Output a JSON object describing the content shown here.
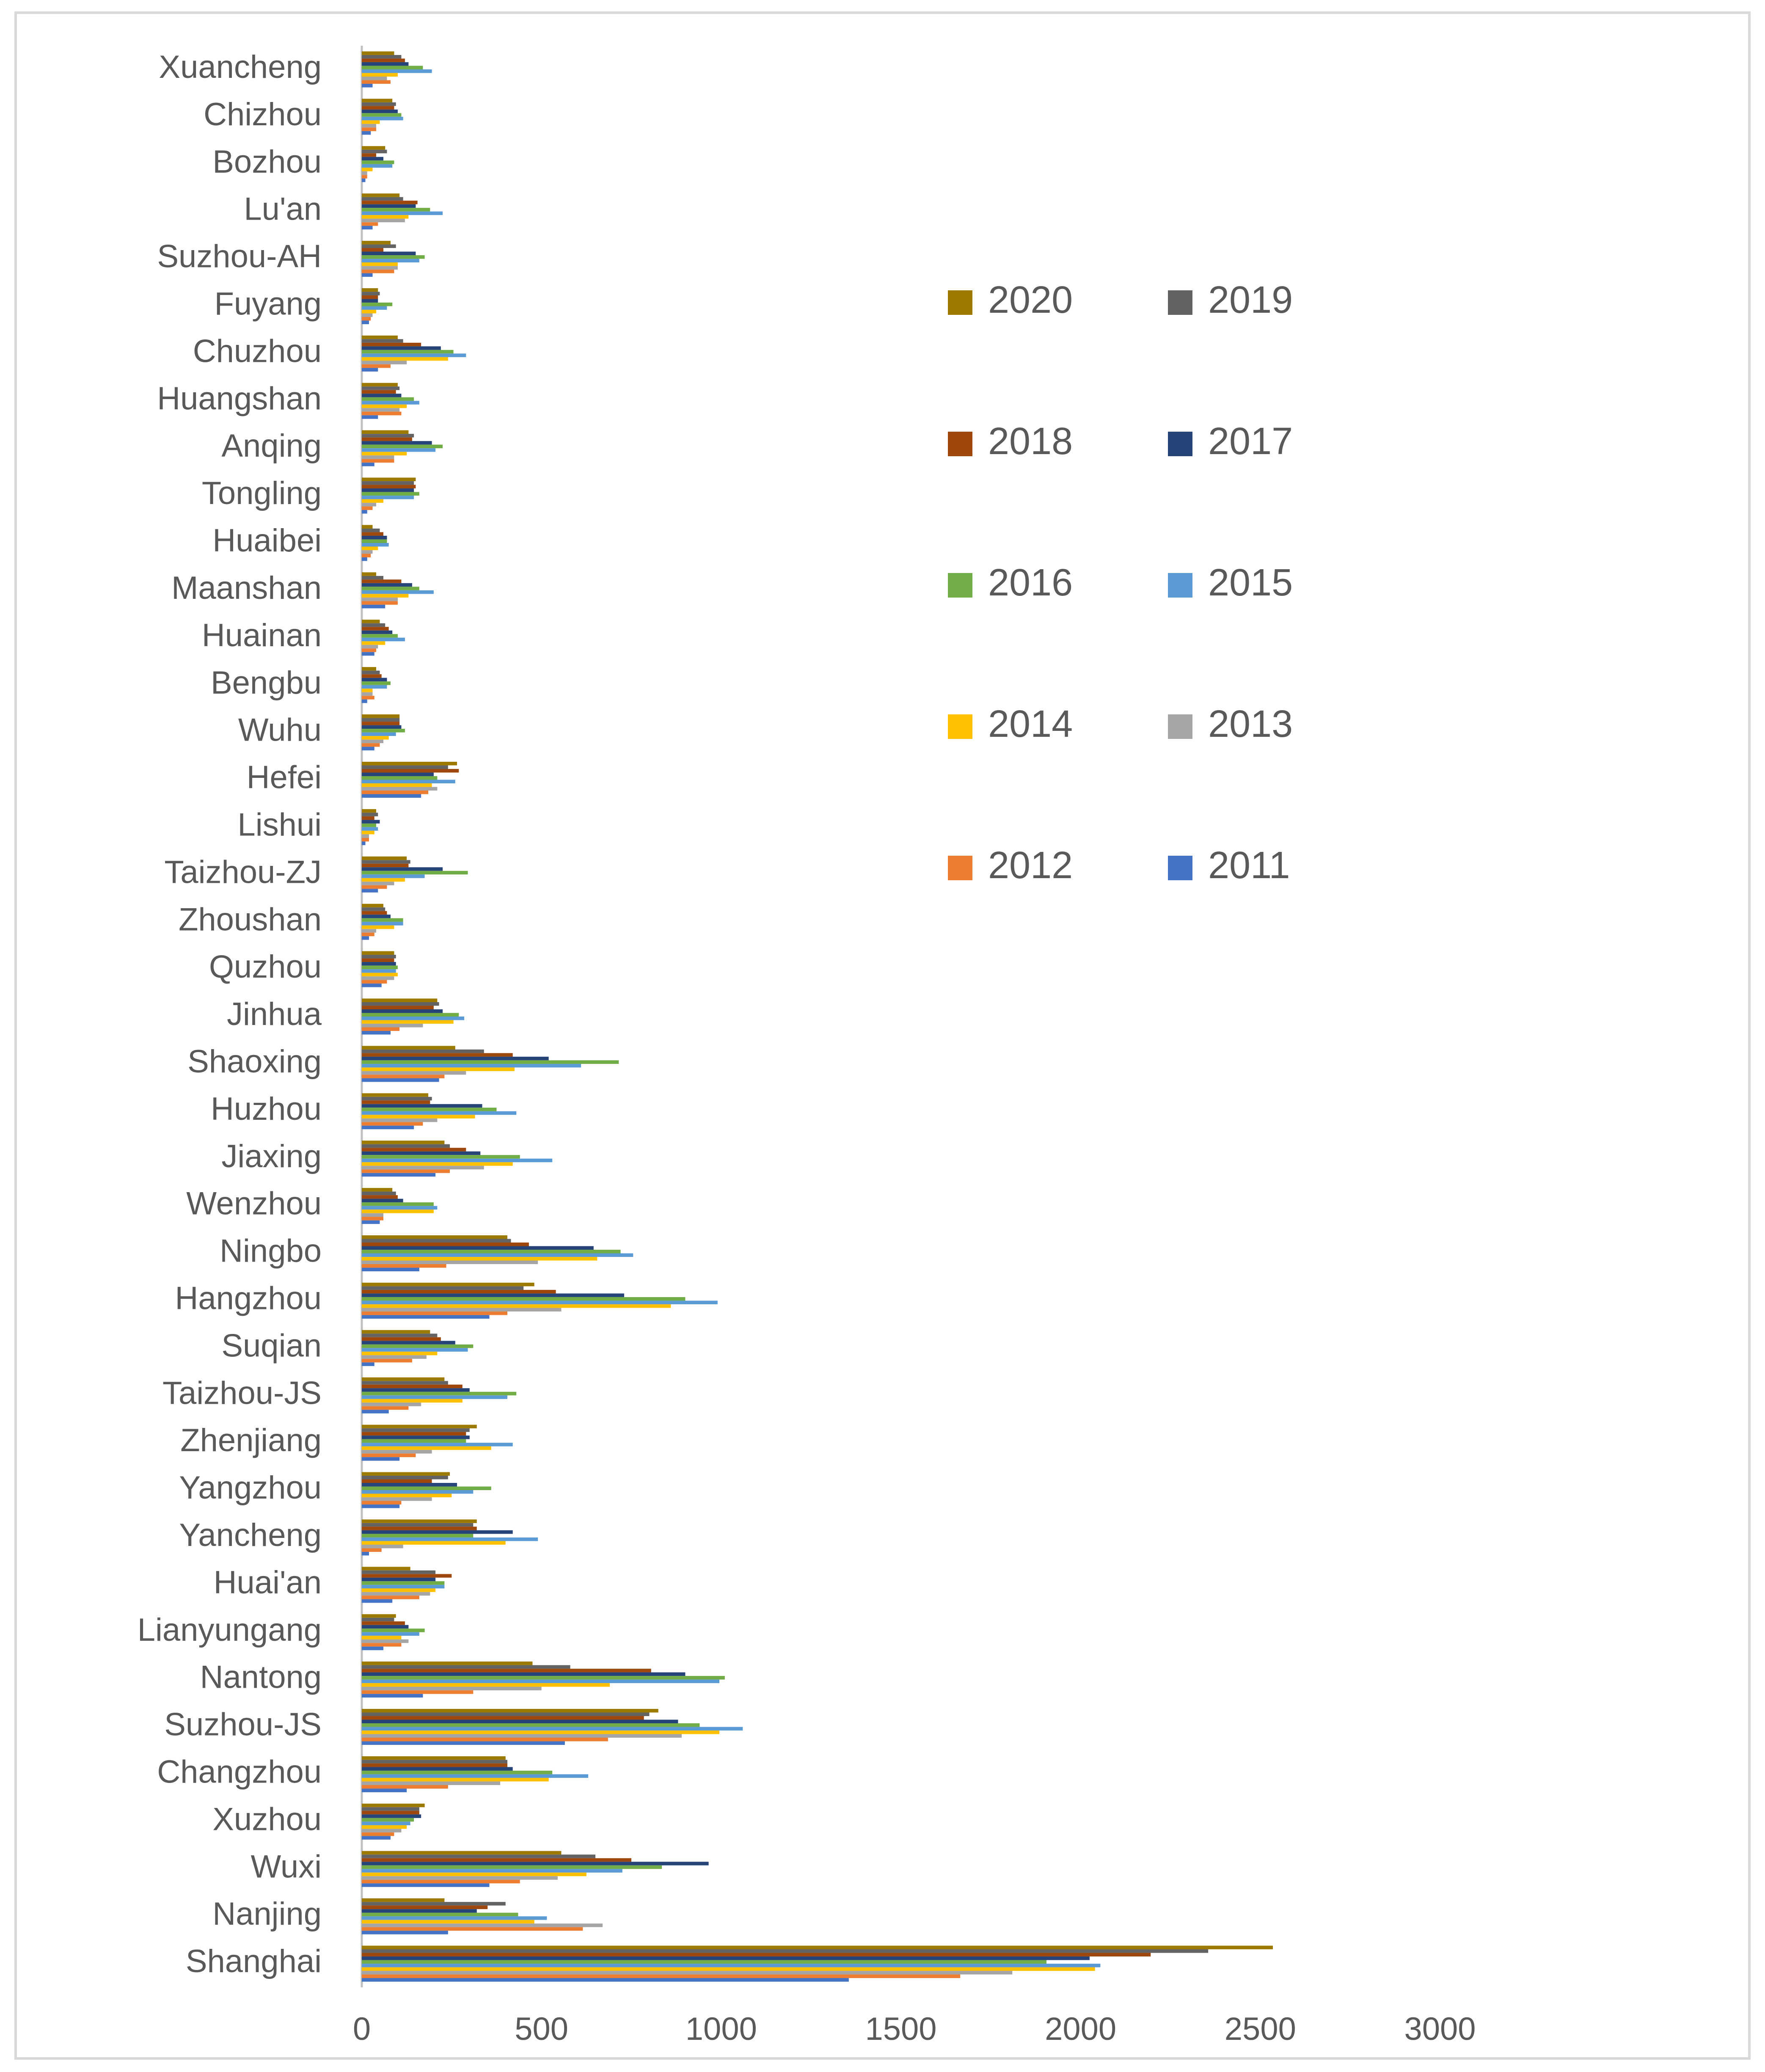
{
  "chart_data": {
    "type": "bar",
    "orientation": "horizontal",
    "title": "",
    "xlabel": "",
    "ylabel": "",
    "xlim": [
      0,
      3000
    ],
    "xticks": [
      0,
      500,
      1000,
      1500,
      2000,
      2500,
      3000
    ],
    "grid": false,
    "legend_position": "right",
    "categories": [
      "Xuancheng",
      "Chizhou",
      "Bozhou",
      "Lu'an",
      "Suzhou-AH",
      "Fuyang",
      "Chuzhou",
      "Huangshan",
      "Anqing",
      "Tongling",
      "Huaibei",
      "Maanshan",
      "Huainan",
      "Bengbu",
      "Wuhu",
      "Hefei",
      "Lishui",
      "Taizhou-ZJ",
      "Zhoushan",
      "Quzhou",
      "Jinhua",
      "Shaoxing",
      "Huzhou",
      "Jiaxing",
      "Wenzhou",
      "Ningbo",
      "Hangzhou",
      "Suqian",
      "Taizhou-JS",
      "Zhenjiang",
      "Yangzhou",
      "Yancheng",
      "Huai'an",
      "Lianyungang",
      "Nantong",
      "Suzhou-JS",
      "Changzhou",
      "Xuzhou",
      "Wuxi",
      "Nanjing",
      "Shanghai"
    ],
    "series": [
      {
        "name": "2020",
        "color": "#9C7A00",
        "values": [
          90,
          85,
          65,
          105,
          80,
          45,
          100,
          100,
          130,
          150,
          30,
          40,
          50,
          40,
          105,
          265,
          40,
          125,
          60,
          90,
          210,
          260,
          185,
          230,
          85,
          405,
          480,
          190,
          230,
          320,
          245,
          320,
          135,
          95,
          475,
          825,
          400,
          175,
          555,
          230,
          2535
        ]
      },
      {
        "name": "2019",
        "color": "#636363",
        "values": [
          110,
          95,
          70,
          115,
          95,
          50,
          115,
          105,
          145,
          145,
          50,
          60,
          65,
          50,
          105,
          240,
          45,
          135,
          65,
          95,
          215,
          340,
          195,
          245,
          95,
          415,
          450,
          210,
          240,
          300,
          240,
          310,
          205,
          90,
          580,
          800,
          405,
          160,
          650,
          400,
          2355
        ]
      },
      {
        "name": "2018",
        "color": "#9E480E",
        "values": [
          120,
          90,
          40,
          155,
          60,
          45,
          165,
          95,
          140,
          150,
          60,
          110,
          75,
          55,
          105,
          270,
          35,
          130,
          70,
          90,
          200,
          420,
          190,
          290,
          100,
          465,
          540,
          220,
          280,
          290,
          195,
          320,
          250,
          120,
          805,
          785,
          405,
          160,
          750,
          350,
          2195
        ]
      },
      {
        "name": "2017",
        "color": "#264478",
        "values": [
          130,
          100,
          60,
          150,
          150,
          45,
          220,
          110,
          195,
          145,
          70,
          140,
          85,
          70,
          110,
          200,
          50,
          225,
          80,
          95,
          225,
          520,
          335,
          330,
          115,
          645,
          730,
          260,
          300,
          300,
          265,
          420,
          205,
          130,
          900,
          880,
          420,
          165,
          965,
          320,
          2025
        ]
      },
      {
        "name": "2016",
        "color": "#70AD47",
        "values": [
          170,
          110,
          90,
          190,
          175,
          85,
          255,
          145,
          225,
          160,
          70,
          160,
          100,
          80,
          120,
          210,
          40,
          295,
          115,
          100,
          270,
          715,
          375,
          440,
          200,
          720,
          900,
          310,
          430,
          290,
          360,
          310,
          230,
          175,
          1010,
          940,
          530,
          145,
          835,
          435,
          1905
        ]
      },
      {
        "name": "2015",
        "color": "#5B9BD5",
        "values": [
          195,
          115,
          85,
          225,
          160,
          70,
          290,
          160,
          205,
          145,
          75,
          200,
          120,
          70,
          95,
          260,
          45,
          175,
          115,
          95,
          285,
          610,
          430,
          530,
          210,
          755,
          990,
          295,
          405,
          420,
          310,
          490,
          230,
          160,
          995,
          1060,
          630,
          135,
          725,
          515,
          2055
        ]
      },
      {
        "name": "2014",
        "color": "#FFC000",
        "values": [
          100,
          50,
          30,
          130,
          100,
          40,
          240,
          125,
          125,
          60,
          45,
          130,
          65,
          30,
          75,
          195,
          35,
          120,
          90,
          100,
          255,
          425,
          315,
          420,
          200,
          655,
          860,
          210,
          280,
          360,
          250,
          400,
          205,
          110,
          690,
          995,
          520,
          125,
          625,
          480,
          2040
        ]
      },
      {
        "name": "2013",
        "color": "#A5A5A5",
        "values": [
          70,
          40,
          15,
          120,
          100,
          30,
          125,
          105,
          90,
          40,
          30,
          100,
          45,
          30,
          60,
          210,
          20,
          90,
          40,
          90,
          170,
          290,
          210,
          340,
          60,
          490,
          555,
          180,
          165,
          195,
          195,
          115,
          190,
          130,
          500,
          890,
          385,
          110,
          545,
          670,
          1810
        ]
      },
      {
        "name": "2012",
        "color": "#ED7D31",
        "values": [
          80,
          40,
          15,
          45,
          90,
          25,
          80,
          110,
          90,
          30,
          25,
          100,
          40,
          35,
          50,
          185,
          20,
          70,
          35,
          70,
          105,
          230,
          170,
          245,
          60,
          235,
          405,
          140,
          130,
          150,
          110,
          55,
          160,
          110,
          310,
          685,
          240,
          90,
          440,
          615,
          1665
        ]
      },
      {
        "name": "2011",
        "color": "#4472C4",
        "values": [
          30,
          25,
          10,
          30,
          30,
          20,
          45,
          45,
          35,
          15,
          15,
          65,
          35,
          15,
          35,
          165,
          10,
          45,
          20,
          55,
          80,
          215,
          145,
          205,
          50,
          160,
          355,
          35,
          75,
          105,
          105,
          20,
          85,
          60,
          170,
          565,
          125,
          80,
          355,
          240,
          1355
        ]
      }
    ]
  }
}
